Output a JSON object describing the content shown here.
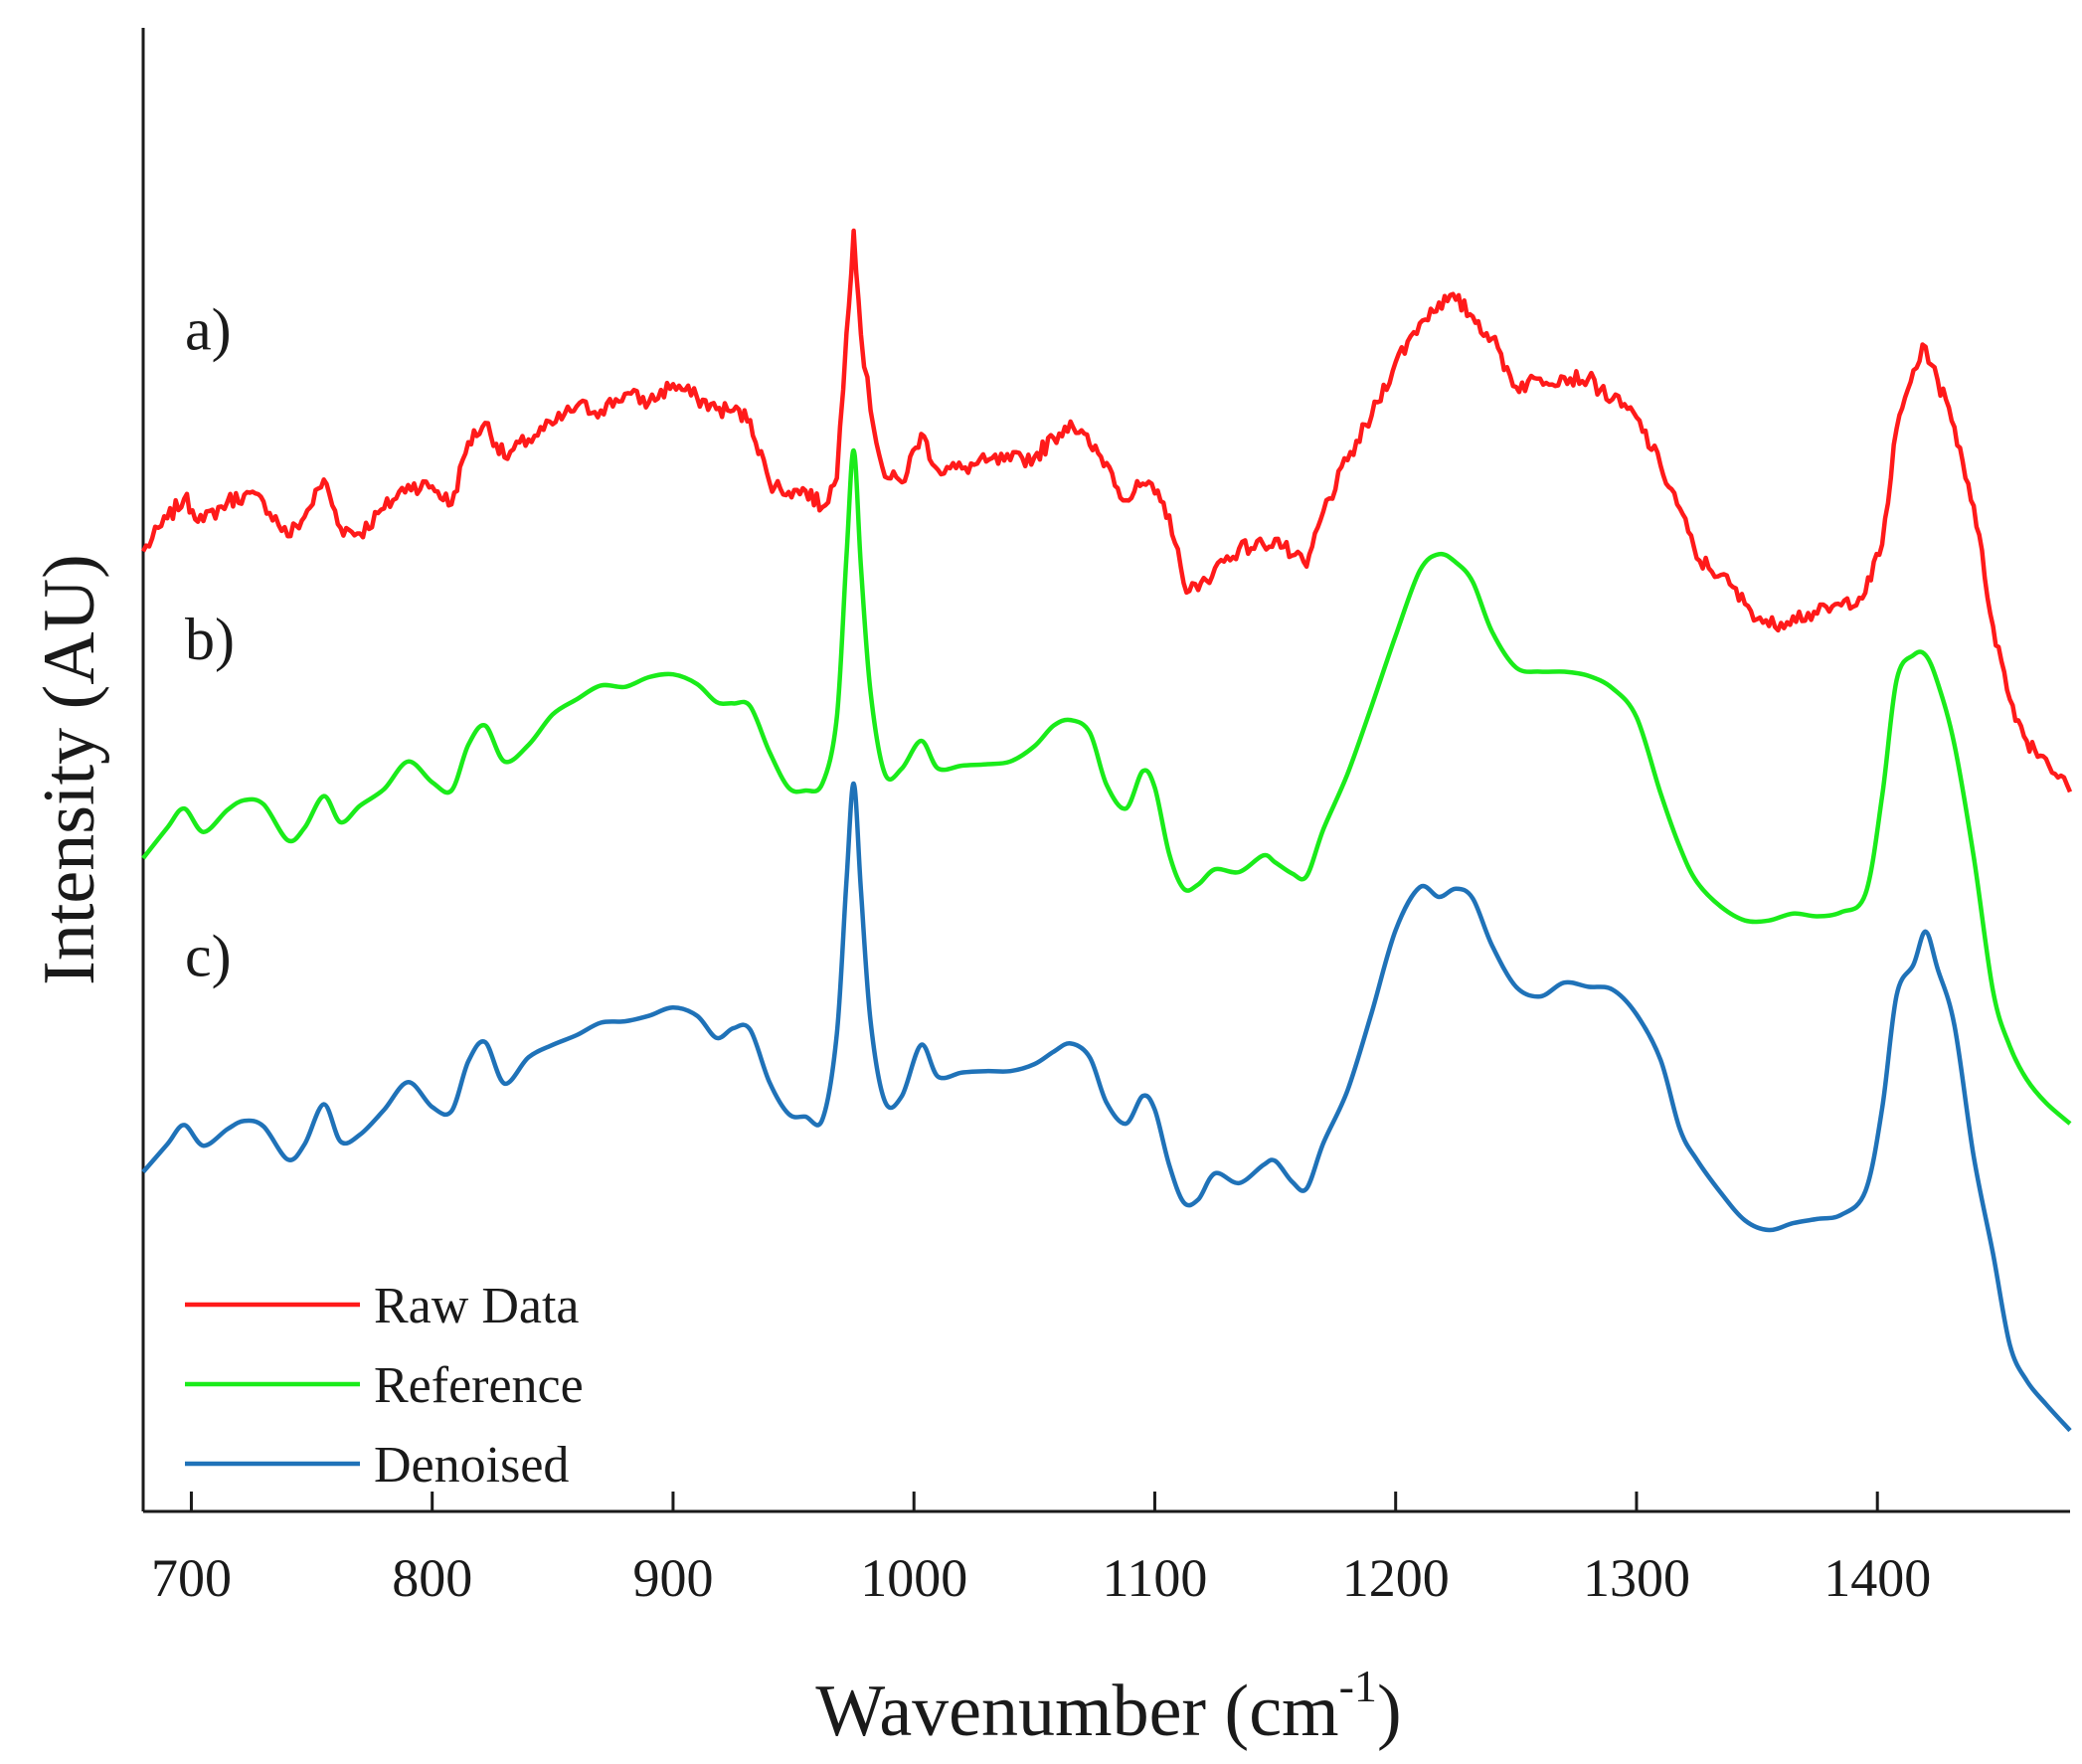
{
  "chart_data": {
    "type": "line",
    "title": "",
    "xlabel": "Wavenumber (cm",
    "xlabel_sup": "-1",
    "xlabel_suffix": ")",
    "ylabel": "Intensity (AU)",
    "xlim": [
      680,
      1480
    ],
    "ylim": [
      0,
      100
    ],
    "y_ticks_shown": false,
    "x_ticks": [
      700,
      800,
      900,
      1000,
      1100,
      1200,
      1300,
      1400
    ],
    "x_tick_labels": [
      "700",
      "800",
      "900",
      "1000",
      "1100",
      "1200",
      "1300",
      "1400"
    ],
    "legend_position": "bottom-left",
    "panel_labels": [
      {
        "text": "a)",
        "series": "Raw Data"
      },
      {
        "text": "b)",
        "series": "Reference"
      },
      {
        "text": "c)",
        "series": "Denoised"
      }
    ],
    "series": [
      {
        "name": "Raw Data",
        "color": "#ff1a1a",
        "noisy": true,
        "x": [
          680,
          690,
          697,
          705,
          715,
          722,
          730,
          740,
          747,
          755,
          762,
          770,
          780,
          790,
          800,
          808,
          815,
          822,
          830,
          840,
          850,
          860,
          870,
          880,
          890,
          900,
          910,
          918,
          925,
          932,
          940,
          948,
          955,
          962,
          968,
          972,
          975,
          978,
          982,
          988,
          995,
          1003,
          1010,
          1020,
          1030,
          1040,
          1050,
          1058,
          1065,
          1073,
          1080,
          1088,
          1095,
          1100,
          1106,
          1112,
          1118,
          1125,
          1135,
          1145,
          1150,
          1157,
          1163,
          1170,
          1180,
          1190,
          1200,
          1210,
          1218,
          1225,
          1232,
          1240,
          1250,
          1260,
          1270,
          1280,
          1290,
          1300,
          1310,
          1318,
          1325,
          1335,
          1345,
          1355,
          1365,
          1375,
          1385,
          1395,
          1402,
          1408,
          1415,
          1420,
          1425,
          1432,
          1440,
          1448,
          1455,
          1462,
          1470,
          1480
        ],
        "y": [
          67.3,
          69.7,
          71.1,
          69.5,
          70.9,
          71.4,
          70.9,
          68.4,
          69.8,
          72.5,
          69.0,
          68.6,
          70.4,
          72.1,
          72.0,
          70.7,
          75.2,
          76.6,
          74.1,
          75.4,
          76.5,
          77.8,
          77.5,
          78.7,
          78.1,
          79.4,
          78.4,
          77.6,
          77.5,
          76.8,
          72.3,
          71.6,
          71.7,
          70.5,
          72.6,
          83.1,
          90.5,
          83.0,
          77.5,
          72.7,
          72.3,
          75.8,
          73.2,
          73.3,
          73.8,
          73.9,
          74.1,
          75.5,
          76.7,
          75.0,
          73.7,
          71.0,
          72.2,
          71.5,
          69.9,
          65.0,
          64.5,
          66.1,
          67.5,
          67.8,
          68.2,
          67.0,
          66.2,
          70.2,
          73.9,
          77.1,
          81.0,
          83.8,
          85.3,
          85.5,
          84.3,
          82.7,
          79.2,
          79.8,
          79.9,
          79.8,
          78.3,
          77.0,
          73.5,
          70.4,
          66.8,
          65.6,
          63.5,
          61.9,
          62.6,
          62.8,
          63.4,
          64.3,
          67.8,
          76.2,
          80.4,
          82.1,
          79.7,
          76.3,
          70.6,
          61.9,
          56.6,
          53.6,
          52.3,
          49.9
        ]
      },
      {
        "name": "Reference",
        "color": "#1aeb1a",
        "noisy": false,
        "x": [
          680,
          690,
          697,
          705,
          715,
          722,
          730,
          740,
          747,
          755,
          762,
          770,
          780,
          790,
          800,
          808,
          815,
          822,
          830,
          840,
          850,
          860,
          870,
          880,
          890,
          900,
          910,
          918,
          925,
          932,
          940,
          948,
          955,
          962,
          968,
          972,
          975,
          978,
          982,
          988,
          995,
          1003,
          1010,
          1020,
          1030,
          1040,
          1050,
          1058,
          1065,
          1073,
          1080,
          1088,
          1095,
          1100,
          1106,
          1112,
          1118,
          1125,
          1135,
          1145,
          1150,
          1157,
          1163,
          1170,
          1180,
          1190,
          1200,
          1210,
          1218,
          1225,
          1232,
          1240,
          1250,
          1260,
          1270,
          1280,
          1290,
          1300,
          1310,
          1318,
          1325,
          1335,
          1345,
          1355,
          1365,
          1375,
          1385,
          1395,
          1402,
          1408,
          1415,
          1420,
          1425,
          1432,
          1440,
          1448,
          1455,
          1462,
          1470,
          1480
        ],
        "y": [
          45.1,
          47.3,
          48.7,
          47.0,
          48.6,
          49.3,
          49.0,
          46.4,
          47.3,
          49.6,
          47.7,
          48.9,
          50.1,
          52.1,
          50.6,
          50.0,
          53.3,
          54.7,
          52.1,
          53.3,
          55.5,
          56.6,
          57.6,
          57.5,
          58.2,
          58.4,
          57.7,
          56.4,
          56.3,
          56.1,
          52.8,
          50.2,
          50.0,
          50.5,
          55.3,
          67.0,
          74.6,
          66.2,
          57.1,
          51.2,
          51.6,
          53.6,
          51.6,
          51.8,
          51.9,
          52.1,
          53.2,
          54.7,
          55.1,
          54.2,
          50.4,
          48.7,
          51.4,
          50.2,
          45.4,
          42.9,
          43.2,
          44.3,
          44.1,
          45.3,
          44.8,
          44.0,
          43.8,
          47.2,
          51.2,
          56.1,
          61.2,
          65.9,
          67.1,
          66.5,
          65.1,
          61.5,
          58.9,
          58.6,
          58.6,
          58.3,
          57.4,
          55.3,
          49.8,
          45.9,
          43.4,
          41.6,
          40.6,
          40.6,
          41.1,
          40.9,
          41.2,
          42.5,
          49.6,
          58.0,
          59.8,
          59.8,
          57.8,
          53.3,
          45.2,
          35.5,
          31.5,
          29.1,
          27.4,
          25.9
        ]
      },
      {
        "name": "Denoised",
        "color": "#1f72b8",
        "noisy": false,
        "x": [
          680,
          690,
          697,
          705,
          715,
          722,
          730,
          740,
          747,
          755,
          762,
          770,
          780,
          790,
          800,
          808,
          815,
          822,
          830,
          840,
          850,
          860,
          870,
          880,
          890,
          900,
          910,
          918,
          925,
          932,
          940,
          948,
          955,
          962,
          968,
          972,
          975,
          978,
          982,
          988,
          995,
          1003,
          1010,
          1020,
          1030,
          1040,
          1050,
          1058,
          1065,
          1073,
          1080,
          1088,
          1095,
          1100,
          1106,
          1112,
          1118,
          1125,
          1135,
          1145,
          1150,
          1157,
          1163,
          1170,
          1180,
          1190,
          1200,
          1210,
          1218,
          1225,
          1232,
          1240,
          1250,
          1260,
          1270,
          1280,
          1290,
          1300,
          1310,
          1318,
          1325,
          1335,
          1345,
          1355,
          1365,
          1375,
          1385,
          1395,
          1402,
          1408,
          1415,
          1420,
          1425,
          1432,
          1440,
          1448,
          1455,
          1462,
          1470,
          1480
        ],
        "y": [
          22.4,
          24.4,
          25.8,
          24.3,
          25.5,
          26.1,
          25.7,
          23.3,
          24.4,
          27.3,
          24.6,
          25.1,
          26.9,
          28.9,
          27.1,
          26.8,
          30.4,
          31.8,
          28.8,
          30.7,
          31.6,
          32.3,
          33.2,
          33.3,
          33.7,
          34.3,
          33.7,
          32.1,
          32.8,
          32.7,
          28.9,
          26.6,
          26.4,
          26.2,
          32.4,
          43.5,
          50.5,
          42.8,
          33.3,
          27.5,
          27.9,
          31.6,
          29.3,
          29.6,
          29.7,
          29.7,
          30.2,
          31.1,
          31.7,
          30.7,
          27.4,
          25.9,
          27.9,
          26.9,
          22.9,
          20.2,
          20.4,
          22.3,
          21.6,
          22.9,
          23.2,
          21.7,
          21.2,
          24.5,
          28.3,
          33.9,
          39.9,
          43.0,
          42.3,
          42.9,
          42.2,
          38.8,
          35.8,
          35.1,
          36.1,
          35.8,
          35.6,
          33.8,
          30.5,
          25.5,
          23.3,
          20.9,
          18.9,
          18.2,
          18.7,
          19.0,
          19.3,
          21.0,
          27.0,
          35.2,
          37.4,
          39.8,
          37.1,
          33.0,
          23.5,
          16.5,
          9.9,
          7.3,
          5.6,
          3.7
        ]
      }
    ]
  }
}
